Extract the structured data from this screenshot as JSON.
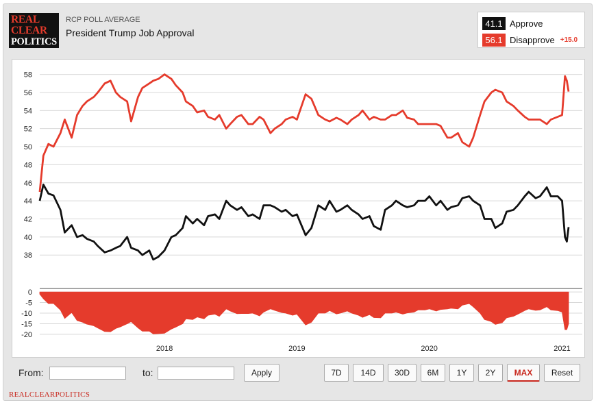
{
  "header": {
    "logo": [
      "REAL",
      "CLEAR",
      "POLITICS"
    ],
    "subtitle": "RCP POLL AVERAGE",
    "title": "President Trump Job Approval"
  },
  "legend": {
    "approve": {
      "value": "41.1",
      "label": "Approve",
      "color": "#111111"
    },
    "disapprove": {
      "value": "56.1",
      "label": "Disapprove",
      "color": "#e53b2c"
    },
    "spread": "+15.0"
  },
  "controls": {
    "from_label": "From:",
    "to_label": "to:",
    "from_value": "",
    "to_value": "",
    "apply_label": "Apply",
    "ranges": [
      "7D",
      "14D",
      "30D",
      "6M",
      "1Y",
      "2Y",
      "MAX",
      "Reset"
    ],
    "active_range": "MAX"
  },
  "footer": "REALCLEARPOLITICS",
  "chart_data": {
    "type": "line",
    "x_range": [
      "2017-01-22",
      "2021-01-19"
    ],
    "x_ticks": [
      "2018",
      "2019",
      "2020",
      "2021"
    ],
    "main_ylim": [
      36.5,
      58.5
    ],
    "main_yticks": [
      38,
      40,
      42,
      44,
      46,
      48,
      50,
      52,
      54,
      56,
      58
    ],
    "spread_ylim": [
      -21,
      1
    ],
    "spread_yticks": [
      0,
      -5,
      -10,
      -15,
      -20
    ],
    "grid": true,
    "series": [
      {
        "name": "Approve",
        "color": "#111111",
        "x": [
          "2017-01-22",
          "2017-02-01",
          "2017-02-15",
          "2017-03-01",
          "2017-03-20",
          "2017-04-01",
          "2017-04-20",
          "2017-05-05",
          "2017-05-20",
          "2017-06-01",
          "2017-06-20",
          "2017-07-01",
          "2017-07-20",
          "2017-08-05",
          "2017-08-20",
          "2017-09-01",
          "2017-09-20",
          "2017-10-01",
          "2017-10-20",
          "2017-11-01",
          "2017-11-20",
          "2017-12-01",
          "2017-12-15",
          "2018-01-01",
          "2018-01-20",
          "2018-02-01",
          "2018-02-20",
          "2018-03-01",
          "2018-03-20",
          "2018-04-01",
          "2018-04-20",
          "2018-05-01",
          "2018-05-20",
          "2018-06-01",
          "2018-06-20",
          "2018-07-01",
          "2018-07-20",
          "2018-08-01",
          "2018-08-20",
          "2018-09-01",
          "2018-09-20",
          "2018-10-01",
          "2018-10-20",
          "2018-11-01",
          "2018-11-20",
          "2018-12-01",
          "2018-12-20",
          "2019-01-01",
          "2019-01-25",
          "2019-02-10",
          "2019-03-01",
          "2019-03-20",
          "2019-04-01",
          "2019-04-20",
          "2019-05-01",
          "2019-05-20",
          "2019-06-01",
          "2019-06-20",
          "2019-07-01",
          "2019-07-20",
          "2019-08-01",
          "2019-08-20",
          "2019-09-01",
          "2019-09-20",
          "2019-10-01",
          "2019-10-20",
          "2019-11-01",
          "2019-11-20",
          "2019-12-01",
          "2019-12-20",
          "2020-01-01",
          "2020-01-20",
          "2020-02-01",
          "2020-02-20",
          "2020-03-01",
          "2020-03-20",
          "2020-04-01",
          "2020-04-20",
          "2020-05-01",
          "2020-05-20",
          "2020-06-01",
          "2020-06-20",
          "2020-07-01",
          "2020-07-20",
          "2020-08-01",
          "2020-08-20",
          "2020-09-01",
          "2020-09-20",
          "2020-10-01",
          "2020-10-20",
          "2020-11-01",
          "2020-11-20",
          "2020-12-01",
          "2020-12-20",
          "2021-01-01",
          "2021-01-09",
          "2021-01-14",
          "2021-01-19"
        ],
        "values": [
          44.0,
          45.8,
          44.8,
          44.6,
          43.0,
          40.5,
          41.3,
          40.0,
          40.2,
          39.8,
          39.5,
          39.0,
          38.3,
          38.5,
          38.8,
          39.0,
          40.0,
          38.8,
          38.5,
          38.0,
          38.5,
          37.5,
          37.8,
          38.5,
          40.0,
          40.2,
          41.0,
          42.3,
          41.5,
          42.0,
          41.3,
          42.3,
          42.5,
          42.0,
          44.0,
          43.5,
          43.0,
          43.3,
          42.3,
          42.5,
          42.0,
          43.5,
          43.5,
          43.3,
          42.8,
          43.0,
          42.3,
          42.5,
          40.2,
          41.0,
          43.5,
          43.0,
          44.0,
          42.8,
          43.0,
          43.5,
          43.0,
          42.5,
          42.0,
          42.3,
          41.2,
          40.8,
          43.0,
          43.5,
          44.0,
          43.5,
          43.3,
          43.5,
          44.0,
          44.0,
          44.5,
          43.5,
          44.0,
          43.0,
          43.3,
          43.5,
          44.3,
          44.5,
          44.0,
          43.5,
          42.0,
          42.0,
          41.0,
          41.5,
          42.8,
          43.0,
          43.5,
          44.5,
          45.0,
          44.3,
          44.5,
          45.5,
          44.5,
          44.5,
          44.0,
          40.0,
          39.5,
          41.1
        ]
      },
      {
        "name": "Disapprove",
        "color": "#e53b2c",
        "x": [
          "2017-01-22",
          "2017-02-01",
          "2017-02-15",
          "2017-03-01",
          "2017-03-20",
          "2017-04-01",
          "2017-04-20",
          "2017-05-05",
          "2017-05-20",
          "2017-06-01",
          "2017-06-20",
          "2017-07-01",
          "2017-07-20",
          "2017-08-05",
          "2017-08-20",
          "2017-09-01",
          "2017-09-20",
          "2017-10-01",
          "2017-10-20",
          "2017-11-01",
          "2017-11-20",
          "2017-12-01",
          "2017-12-15",
          "2018-01-01",
          "2018-01-20",
          "2018-02-01",
          "2018-02-20",
          "2018-03-01",
          "2018-03-20",
          "2018-04-01",
          "2018-04-20",
          "2018-05-01",
          "2018-05-20",
          "2018-06-01",
          "2018-06-20",
          "2018-07-01",
          "2018-07-20",
          "2018-08-01",
          "2018-08-20",
          "2018-09-01",
          "2018-09-20",
          "2018-10-01",
          "2018-10-20",
          "2018-11-01",
          "2018-11-20",
          "2018-12-01",
          "2018-12-20",
          "2019-01-01",
          "2019-01-25",
          "2019-02-10",
          "2019-03-01",
          "2019-03-20",
          "2019-04-01",
          "2019-04-20",
          "2019-05-01",
          "2019-05-20",
          "2019-06-01",
          "2019-06-20",
          "2019-07-01",
          "2019-07-20",
          "2019-08-01",
          "2019-08-20",
          "2019-09-01",
          "2019-09-20",
          "2019-10-01",
          "2019-10-20",
          "2019-11-01",
          "2019-11-20",
          "2019-12-01",
          "2019-12-20",
          "2020-01-01",
          "2020-01-20",
          "2020-02-01",
          "2020-02-20",
          "2020-03-01",
          "2020-03-20",
          "2020-04-01",
          "2020-04-20",
          "2020-05-01",
          "2020-05-20",
          "2020-06-01",
          "2020-06-20",
          "2020-07-01",
          "2020-07-20",
          "2020-08-01",
          "2020-08-20",
          "2020-09-01",
          "2020-09-20",
          "2020-10-01",
          "2020-10-20",
          "2020-11-01",
          "2020-11-20",
          "2020-12-01",
          "2020-12-20",
          "2021-01-01",
          "2021-01-09",
          "2021-01-14",
          "2021-01-19"
        ],
        "values": [
          45.0,
          49.0,
          50.3,
          50.0,
          51.5,
          53.0,
          51.0,
          53.5,
          54.5,
          55.0,
          55.5,
          56.0,
          57.0,
          57.3,
          56.0,
          55.5,
          55.0,
          52.8,
          55.5,
          56.5,
          57.0,
          57.3,
          57.5,
          58.0,
          57.5,
          56.8,
          56.0,
          55.0,
          54.5,
          53.8,
          54.0,
          53.3,
          53.0,
          53.5,
          52.0,
          52.5,
          53.3,
          53.5,
          52.5,
          52.5,
          53.3,
          53.0,
          51.5,
          52.0,
          52.5,
          53.0,
          53.3,
          53.0,
          55.8,
          55.3,
          53.5,
          53.0,
          52.8,
          53.2,
          53.0,
          52.5,
          53.0,
          53.5,
          54.0,
          53.0,
          53.3,
          53.0,
          53.0,
          53.5,
          53.5,
          54.0,
          53.2,
          53.0,
          52.5,
          52.5,
          52.5,
          52.5,
          52.3,
          51.0,
          51.0,
          51.5,
          50.5,
          50.0,
          51.0,
          53.5,
          55.0,
          56.0,
          56.3,
          56.0,
          55.0,
          54.5,
          54.0,
          53.3,
          53.0,
          53.0,
          53.0,
          52.5,
          53.0,
          53.3,
          53.5,
          57.8,
          57.3,
          56.1
        ]
      }
    ],
    "spread": {
      "name": "Spread",
      "color": "#e53b2c",
      "type": "area",
      "x": [
        "2017-01-22",
        "2017-02-01",
        "2017-02-15",
        "2017-03-01",
        "2017-03-20",
        "2017-04-01",
        "2017-04-20",
        "2017-05-05",
        "2017-05-20",
        "2017-06-01",
        "2017-06-20",
        "2017-07-01",
        "2017-07-20",
        "2017-08-05",
        "2017-08-20",
        "2017-09-01",
        "2017-09-20",
        "2017-10-01",
        "2017-10-20",
        "2017-11-01",
        "2017-11-20",
        "2017-12-01",
        "2017-12-15",
        "2018-01-01",
        "2018-01-20",
        "2018-02-01",
        "2018-02-20",
        "2018-03-01",
        "2018-03-20",
        "2018-04-01",
        "2018-04-20",
        "2018-05-01",
        "2018-05-20",
        "2018-06-01",
        "2018-06-20",
        "2018-07-01",
        "2018-07-20",
        "2018-08-01",
        "2018-08-20",
        "2018-09-01",
        "2018-09-20",
        "2018-10-01",
        "2018-10-20",
        "2018-11-01",
        "2018-11-20",
        "2018-12-01",
        "2018-12-20",
        "2019-01-01",
        "2019-01-25",
        "2019-02-10",
        "2019-03-01",
        "2019-03-20",
        "2019-04-01",
        "2019-04-20",
        "2019-05-01",
        "2019-05-20",
        "2019-06-01",
        "2019-06-20",
        "2019-07-01",
        "2019-07-20",
        "2019-08-01",
        "2019-08-20",
        "2019-09-01",
        "2019-09-20",
        "2019-10-01",
        "2019-10-20",
        "2019-11-01",
        "2019-11-20",
        "2019-12-01",
        "2019-12-20",
        "2020-01-01",
        "2020-01-20",
        "2020-02-01",
        "2020-02-20",
        "2020-03-01",
        "2020-03-20",
        "2020-04-01",
        "2020-04-20",
        "2020-05-01",
        "2020-05-20",
        "2020-06-01",
        "2020-06-20",
        "2020-07-01",
        "2020-07-20",
        "2020-08-01",
        "2020-08-20",
        "2020-09-01",
        "2020-09-20",
        "2020-10-01",
        "2020-10-20",
        "2020-11-01",
        "2020-11-20",
        "2020-12-01",
        "2020-12-20",
        "2021-01-01",
        "2021-01-09",
        "2021-01-14",
        "2021-01-19"
      ],
      "values": [
        -1.0,
        -3.2,
        -5.5,
        -5.4,
        -8.5,
        -12.5,
        -9.7,
        -13.5,
        -14.3,
        -15.2,
        -16.0,
        -17.0,
        -18.7,
        -18.8,
        -17.2,
        -16.5,
        -15.0,
        -14.0,
        -17.0,
        -18.5,
        -18.5,
        -19.8,
        -19.7,
        -19.5,
        -17.5,
        -16.6,
        -15.0,
        -12.7,
        -13.0,
        -11.8,
        -12.7,
        -11.0,
        -10.5,
        -11.5,
        -8.0,
        -9.0,
        -10.3,
        -10.2,
        -10.2,
        -10.0,
        -11.3,
        -9.5,
        -8.0,
        -8.7,
        -9.7,
        -10.0,
        -11.0,
        -10.5,
        -15.6,
        -14.3,
        -10.0,
        -10.0,
        -8.8,
        -10.4,
        -10.0,
        -9.0,
        -10.0,
        -11.0,
        -12.0,
        -10.7,
        -12.1,
        -12.2,
        -10.0,
        -10.0,
        -9.5,
        -10.5,
        -9.9,
        -9.5,
        -8.5,
        -8.5,
        -8.0,
        -9.0,
        -8.3,
        -8.0,
        -7.7,
        -8.0,
        -6.2,
        -5.5,
        -7.0,
        -10.0,
        -13.0,
        -14.0,
        -15.3,
        -14.5,
        -12.2,
        -11.5,
        -10.5,
        -8.8,
        -8.0,
        -8.7,
        -8.5,
        -7.0,
        -8.5,
        -8.8,
        -9.5,
        -17.8,
        -17.8,
        -15.0
      ]
    }
  }
}
